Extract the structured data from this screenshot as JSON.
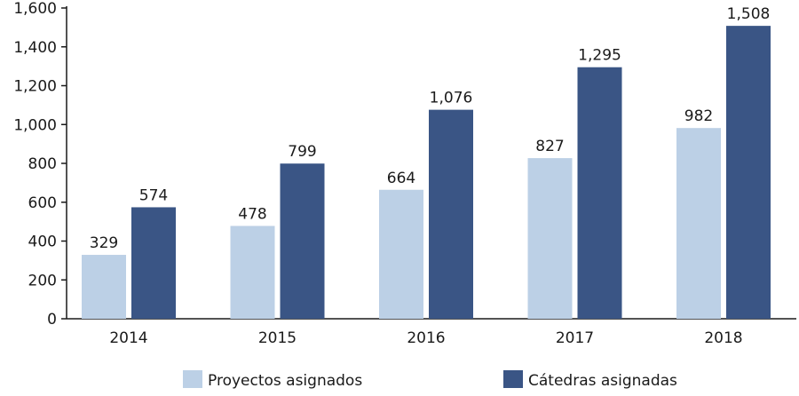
{
  "chart_data": {
    "type": "bar",
    "categories": [
      "2014",
      "2015",
      "2016",
      "2017",
      "2018"
    ],
    "series": [
      {
        "name": "Proyectos asignados",
        "values": [
          329,
          478,
          664,
          827,
          982
        ],
        "labels": [
          "329",
          "478",
          "664",
          "827",
          "982"
        ],
        "color": "#bcd0e6"
      },
      {
        "name": "Cátedras asignadas",
        "values": [
          574,
          799,
          1076,
          1295,
          1508
        ],
        "labels": [
          "574",
          "799",
          "1,076",
          "1,295",
          "1,508"
        ],
        "color": "#3a5585"
      }
    ],
    "yticks": [
      0,
      200,
      400,
      600,
      800,
      1000,
      1200,
      1400,
      1600
    ],
    "ytick_labels": [
      "0",
      "200",
      "400",
      "600",
      "800",
      "1,000",
      "1,200",
      "1,400",
      "1,600"
    ],
    "ylim": [
      0,
      1600
    ],
    "grid": false,
    "legend_position": "bottom"
  }
}
